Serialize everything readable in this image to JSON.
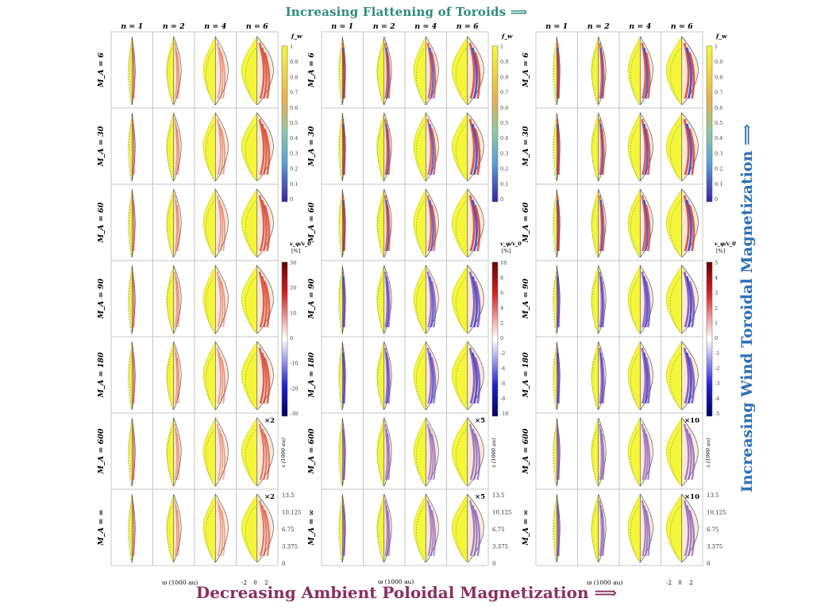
{
  "titles": {
    "top": "Increasing Flattening of Toroids ⟹",
    "bottom": "Decreasing Ambient Poloidal Magnetization ⟹",
    "side": "Increasing Wind Toroidal Magnetization ⟹"
  },
  "column_labels": [
    "n = 1",
    "n = 2",
    "n = 4",
    "n = 6"
  ],
  "row_labels": [
    "M_A = 6",
    "M_A = 30",
    "M_A = 60",
    "M_A = 90",
    "M_A = 180",
    "M_A = 600",
    "M_A = ∞"
  ],
  "panels": [
    {
      "scale_labels": [
        "",
        "",
        "",
        "",
        "",
        "×2",
        "×2"
      ],
      "vr_colorbar": {
        "title": "v_φ/v_0",
        "unit": "[%]",
        "ticks": [
          "30",
          "20",
          "10",
          "0",
          "-10",
          "-20",
          "-30"
        ]
      }
    },
    {
      "scale_labels": [
        "",
        "",
        "",
        "",
        "",
        "×5",
        "×5"
      ],
      "vr_colorbar": {
        "title": "v_φ/v_0",
        "unit": "[%]",
        "ticks": [
          "10",
          "8",
          "6",
          "4",
          "2",
          "0",
          "-2",
          "-4",
          "-6",
          "-8",
          "-10"
        ]
      }
    },
    {
      "scale_labels": [
        "",
        "",
        "",
        "",
        "",
        "×10",
        "×10"
      ],
      "vr_colorbar": {
        "title": "v_φ/v_0",
        "unit": "[%]",
        "ticks": [
          "5",
          "4",
          "3",
          "2",
          "1",
          "0",
          "-1",
          "-2",
          "-3",
          "-4",
          "-5"
        ]
      }
    }
  ],
  "fw_colorbar": {
    "title": "f_w",
    "ticks": [
      "1",
      "0.9",
      "0.8",
      "0.7",
      "0.6",
      "0.5",
      "0.4",
      "0.3",
      "0.2",
      "0.1",
      "0"
    ]
  },
  "z_axis": {
    "label": "z (1000 au)",
    "ticks": [
      "13.5",
      "10.125",
      "6.75",
      "3.375",
      "0"
    ]
  },
  "x_axis": {
    "label": "ϖ (1000 au)",
    "ticks": [
      "-2",
      "0",
      "2"
    ]
  },
  "colors": {
    "top_title": "#2e8b7a",
    "bottom_title": "#8b2f5e",
    "side_title": "#2e6fb8",
    "fill_yellow": "#f5f53a"
  }
}
